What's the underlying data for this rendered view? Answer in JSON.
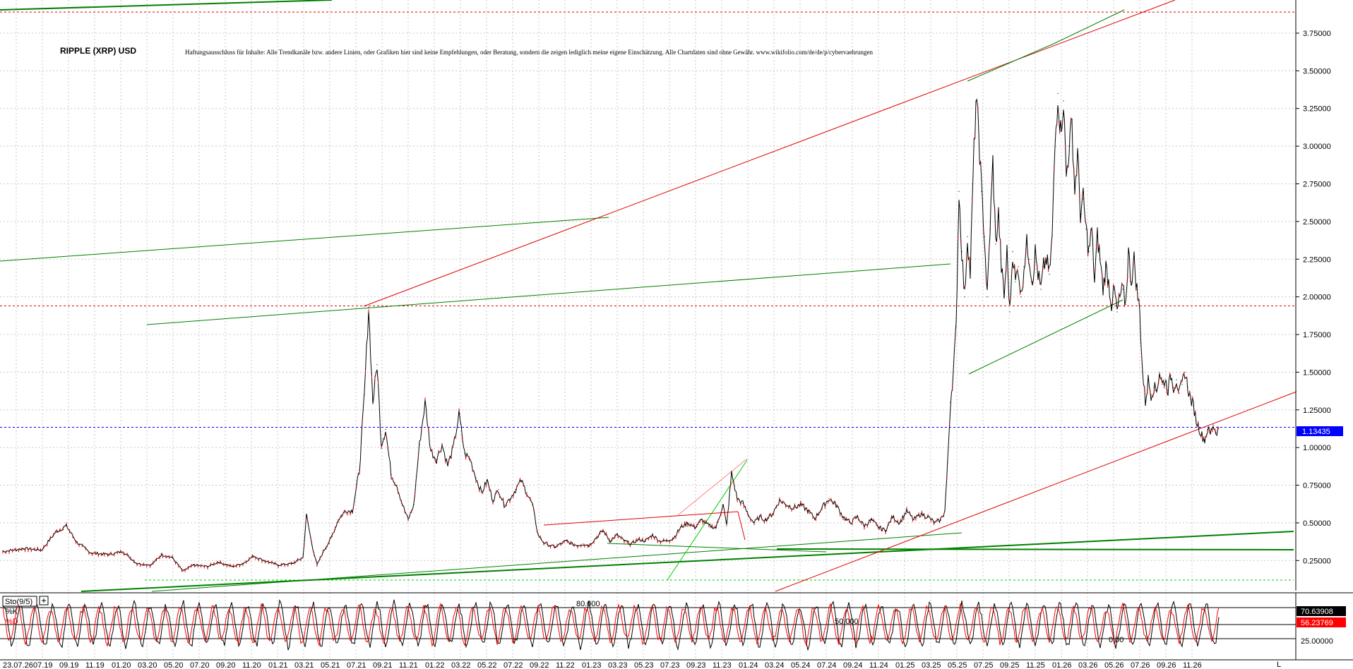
{
  "chart_title": "RIPPLE (XRP) USD",
  "disclaimer": "Haftungsausschluss für Inhalte: Alle Trendkanäle bzw. andere Linien, oder Grafiken hier sind keine Empfehlungen, oder Beratung, sondern die zeigen lediglich meine eigene Einschätzung. Alle Chartdaten sind ohne Gewähr. www.wikifolio.com/de/de/p/cybervaehrungen",
  "current_price_label": "1.13435",
  "indicator": {
    "name": "Sto(9/5)",
    "k_label": "%K",
    "d_label": "%D",
    "k_value": "70.63908",
    "d_value": "56.23769",
    "level_labels": [
      "80.000",
      "50.000",
      "25.00000",
      "0.00"
    ]
  },
  "corner_label": "L",
  "colors": {
    "grid": "#c8c8c8",
    "price_line": "#000000",
    "price_accent": "#d40000",
    "trend_green": "#008000",
    "trend_red": "#e00000",
    "current_price": "#0000ff",
    "k_tag_bg": "#000000",
    "d_tag_bg": "#ff0000"
  },
  "chart_data": [
    {
      "type": "line",
      "title": "RIPPLE (XRP) USD",
      "xlabel": "",
      "ylabel": "",
      "ylim": [
        0.05,
        3.97
      ],
      "y_ticks": [
        "0.25000",
        "0.50000",
        "0.75000",
        "1.00000",
        "1.25000",
        "1.50000",
        "1.75000",
        "2.00000",
        "2.25000",
        "2.50000",
        "2.75000",
        "3.00000",
        "3.25000",
        "3.50000",
        "3.75000"
      ],
      "x_ticks": [
        "23.07.26",
        "07.19",
        "09.19",
        "11.19",
        "01.20",
        "03.20",
        "05.20",
        "07.20",
        "09.20",
        "11.20",
        "01.21",
        "03.21",
        "05.21",
        "07.21",
        "09.21",
        "11.21",
        "01.22",
        "03.22",
        "05.22",
        "07.22",
        "09.22",
        "11.22",
        "01.23",
        "03.23",
        "05.23",
        "07.23",
        "09.23",
        "11.23",
        "01.24",
        "03.24",
        "05.24",
        "07.24",
        "09.24",
        "11.24",
        "01.25",
        "03.25",
        "05.25",
        "07.25",
        "09.25",
        "11.25",
        "01.26",
        "03.26",
        "05.26",
        "07.26",
        "09.26",
        "11.26"
      ],
      "grid": true,
      "horizontal_levels": [
        {
          "name": "red-dashed-top",
          "value": 3.89
        },
        {
          "name": "red-dashed-mid",
          "value": 1.94
        },
        {
          "name": "current-price",
          "value": 1.13435
        },
        {
          "name": "green-dashed-bottom",
          "value": 0.12
        }
      ],
      "series": [
        {
          "name": "",
          "points": [
            [
              0,
              0.31
            ],
            [
              30,
              0.33
            ],
            [
              55,
              0.32
            ],
            [
              75,
              0.44
            ],
            [
              90,
              0.48
            ],
            [
              105,
              0.37
            ],
            [
              125,
              0.3
            ],
            [
              150,
              0.29
            ],
            [
              170,
              0.31
            ],
            [
              190,
              0.23
            ],
            [
              210,
              0.22
            ],
            [
              225,
              0.29
            ],
            [
              240,
              0.27
            ],
            [
              255,
              0.18
            ],
            [
              270,
              0.22
            ],
            [
              290,
              0.21
            ],
            [
              305,
              0.24
            ],
            [
              325,
              0.21
            ],
            [
              340,
              0.23
            ],
            [
              355,
              0.28
            ],
            [
              370,
              0.25
            ],
            [
              390,
              0.22
            ],
            [
              410,
              0.23
            ],
            [
              425,
              0.27
            ],
            [
              430,
              0.55
            ],
            [
              438,
              0.35
            ],
            [
              445,
              0.22
            ],
            [
              455,
              0.32
            ],
            [
              465,
              0.4
            ],
            [
              475,
              0.52
            ],
            [
              485,
              0.58
            ],
            [
              495,
              0.58
            ],
            [
              505,
              0.85
            ],
            [
              512,
              1.35
            ],
            [
              518,
              1.93
            ],
            [
              524,
              1.3
            ],
            [
              530,
              1.55
            ],
            [
              536,
              1.02
            ],
            [
              542,
              1.12
            ],
            [
              550,
              0.82
            ],
            [
              558,
              0.75
            ],
            [
              566,
              0.62
            ],
            [
              574,
              0.52
            ],
            [
              582,
              0.62
            ],
            [
              590,
              1.02
            ],
            [
              598,
              1.3
            ],
            [
              606,
              0.98
            ],
            [
              614,
              0.92
            ],
            [
              622,
              1.02
            ],
            [
              630,
              0.88
            ],
            [
              638,
              1.0
            ],
            [
              646,
              1.22
            ],
            [
              654,
              0.96
            ],
            [
              662,
              0.92
            ],
            [
              670,
              0.8
            ],
            [
              678,
              0.7
            ],
            [
              686,
              0.78
            ],
            [
              694,
              0.65
            ],
            [
              702,
              0.72
            ],
            [
              710,
              0.62
            ],
            [
              718,
              0.66
            ],
            [
              726,
              0.72
            ],
            [
              734,
              0.78
            ],
            [
              742,
              0.7
            ],
            [
              750,
              0.62
            ],
            [
              758,
              0.42
            ],
            [
              766,
              0.37
            ],
            [
              774,
              0.35
            ],
            [
              782,
              0.34
            ],
            [
              790,
              0.36
            ],
            [
              798,
              0.38
            ],
            [
              806,
              0.36
            ],
            [
              814,
              0.35
            ],
            [
              822,
              0.36
            ],
            [
              830,
              0.35
            ],
            [
              840,
              0.4
            ],
            [
              850,
              0.45
            ],
            [
              860,
              0.38
            ],
            [
              870,
              0.42
            ],
            [
              880,
              0.38
            ],
            [
              890,
              0.36
            ],
            [
              900,
              0.39
            ],
            [
              910,
              0.38
            ],
            [
              920,
              0.42
            ],
            [
              930,
              0.38
            ],
            [
              940,
              0.38
            ],
            [
              950,
              0.4
            ],
            [
              960,
              0.47
            ],
            [
              970,
              0.5
            ],
            [
              980,
              0.47
            ],
            [
              990,
              0.52
            ],
            [
              1000,
              0.48
            ],
            [
              1010,
              0.47
            ],
            [
              1020,
              0.62
            ],
            [
              1025,
              0.48
            ],
            [
              1032,
              0.83
            ],
            [
              1040,
              0.66
            ],
            [
              1048,
              0.63
            ],
            [
              1056,
              0.55
            ],
            [
              1064,
              0.5
            ],
            [
              1072,
              0.54
            ],
            [
              1080,
              0.52
            ],
            [
              1090,
              0.56
            ],
            [
              1100,
              0.65
            ],
            [
              1110,
              0.62
            ],
            [
              1120,
              0.6
            ],
            [
              1130,
              0.62
            ],
            [
              1140,
              0.58
            ],
            [
              1150,
              0.53
            ],
            [
              1160,
              0.6
            ],
            [
              1170,
              0.66
            ],
            [
              1180,
              0.62
            ],
            [
              1190,
              0.54
            ],
            [
              1200,
              0.5
            ],
            [
              1210,
              0.54
            ],
            [
              1220,
              0.48
            ],
            [
              1230,
              0.52
            ],
            [
              1240,
              0.47
            ],
            [
              1250,
              0.45
            ],
            [
              1260,
              0.54
            ],
            [
              1270,
              0.5
            ],
            [
              1280,
              0.58
            ],
            [
              1290,
              0.52
            ],
            [
              1300,
              0.56
            ],
            [
              1310,
              0.54
            ],
            [
              1320,
              0.5
            ],
            [
              1328,
              0.52
            ],
            [
              1334,
              0.58
            ],
            [
              1338,
              0.9
            ],
            [
              1342,
              1.3
            ],
            [
              1346,
              1.5
            ],
            [
              1350,
              1.8
            ],
            [
              1354,
              2.7
            ],
            [
              1358,
              2.3
            ],
            [
              1362,
              2.0
            ],
            [
              1366,
              2.4
            ],
            [
              1370,
              2.15
            ],
            [
              1374,
              2.8
            ],
            [
              1378,
              3.3
            ],
            [
              1382,
              3.1
            ],
            [
              1386,
              2.7
            ],
            [
              1390,
              2.4
            ],
            [
              1394,
              2.0
            ],
            [
              1398,
              2.45
            ],
            [
              1402,
              2.9
            ],
            [
              1406,
              2.35
            ],
            [
              1410,
              2.55
            ],
            [
              1414,
              2.2
            ],
            [
              1418,
              2.0
            ],
            [
              1422,
              2.3
            ],
            [
              1426,
              1.9
            ],
            [
              1430,
              2.3
            ],
            [
              1434,
              2.1
            ],
            [
              1438,
              2.2
            ],
            [
              1442,
              2.0
            ],
            [
              1446,
              2.2
            ],
            [
              1450,
              2.35
            ],
            [
              1454,
              2.25
            ],
            [
              1458,
              2.1
            ],
            [
              1462,
              2.3
            ],
            [
              1466,
              2.15
            ],
            [
              1470,
              2.05
            ],
            [
              1474,
              2.2
            ],
            [
              1478,
              2.25
            ],
            [
              1482,
              2.15
            ],
            [
              1486,
              2.4
            ],
            [
              1490,
              3.0
            ],
            [
              1494,
              3.35
            ],
            [
              1498,
              3.1
            ],
            [
              1502,
              3.3
            ],
            [
              1506,
              2.8
            ],
            [
              1510,
              3.0
            ],
            [
              1514,
              3.15
            ],
            [
              1518,
              2.7
            ],
            [
              1522,
              2.95
            ],
            [
              1526,
              2.55
            ],
            [
              1530,
              2.65
            ],
            [
              1534,
              2.45
            ],
            [
              1538,
              2.3
            ],
            [
              1542,
              2.45
            ],
            [
              1546,
              2.1
            ],
            [
              1550,
              2.4
            ],
            [
              1554,
              2.25
            ],
            [
              1558,
              2.05
            ],
            [
              1562,
              2.2
            ],
            [
              1566,
              2.1
            ],
            [
              1570,
              1.95
            ],
            [
              1574,
              2.05
            ],
            [
              1578,
              1.9
            ],
            [
              1582,
              2.0
            ],
            [
              1586,
              2.05
            ],
            [
              1590,
              1.95
            ],
            [
              1594,
              2.3
            ],
            [
              1598,
              2.1
            ],
            [
              1602,
              2.25
            ],
            [
              1606,
              2.05
            ],
            [
              1610,
              1.9
            ],
            [
              1614,
              1.5
            ],
            [
              1618,
              1.3
            ],
            [
              1622,
              1.45
            ],
            [
              1626,
              1.35
            ],
            [
              1630,
              1.4
            ],
            [
              1634,
              1.38
            ],
            [
              1638,
              1.5
            ],
            [
              1642,
              1.42
            ],
            [
              1646,
              1.45
            ],
            [
              1650,
              1.38
            ],
            [
              1654,
              1.48
            ],
            [
              1658,
              1.4
            ],
            [
              1662,
              1.45
            ],
            [
              1666,
              1.36
            ],
            [
              1670,
              1.42
            ],
            [
              1674,
              1.5
            ],
            [
              1678,
              1.4
            ],
            [
              1682,
              1.32
            ],
            [
              1686,
              1.28
            ],
            [
              1690,
              1.18
            ],
            [
              1694,
              1.13
            ],
            [
              1698,
              1.08
            ],
            [
              1702,
              1.05
            ],
            [
              1706,
              1.12
            ],
            [
              1710,
              1.09
            ],
            [
              1714,
              1.15
            ],
            [
              1718,
              1.1
            ],
            [
              1722,
              1.13
            ]
          ]
        }
      ]
    },
    {
      "type": "line",
      "title": "Sto(9/5)",
      "ylim": [
        0,
        100
      ],
      "y_ticks": [
        "25.00000"
      ],
      "levels": [
        80,
        50,
        25
      ],
      "series": [
        {
          "name": "%K",
          "period": 23,
          "amplitude": 38,
          "center": 50
        },
        {
          "name": "%D",
          "period": 23,
          "amplitude": 32,
          "center": 50
        }
      ]
    }
  ]
}
